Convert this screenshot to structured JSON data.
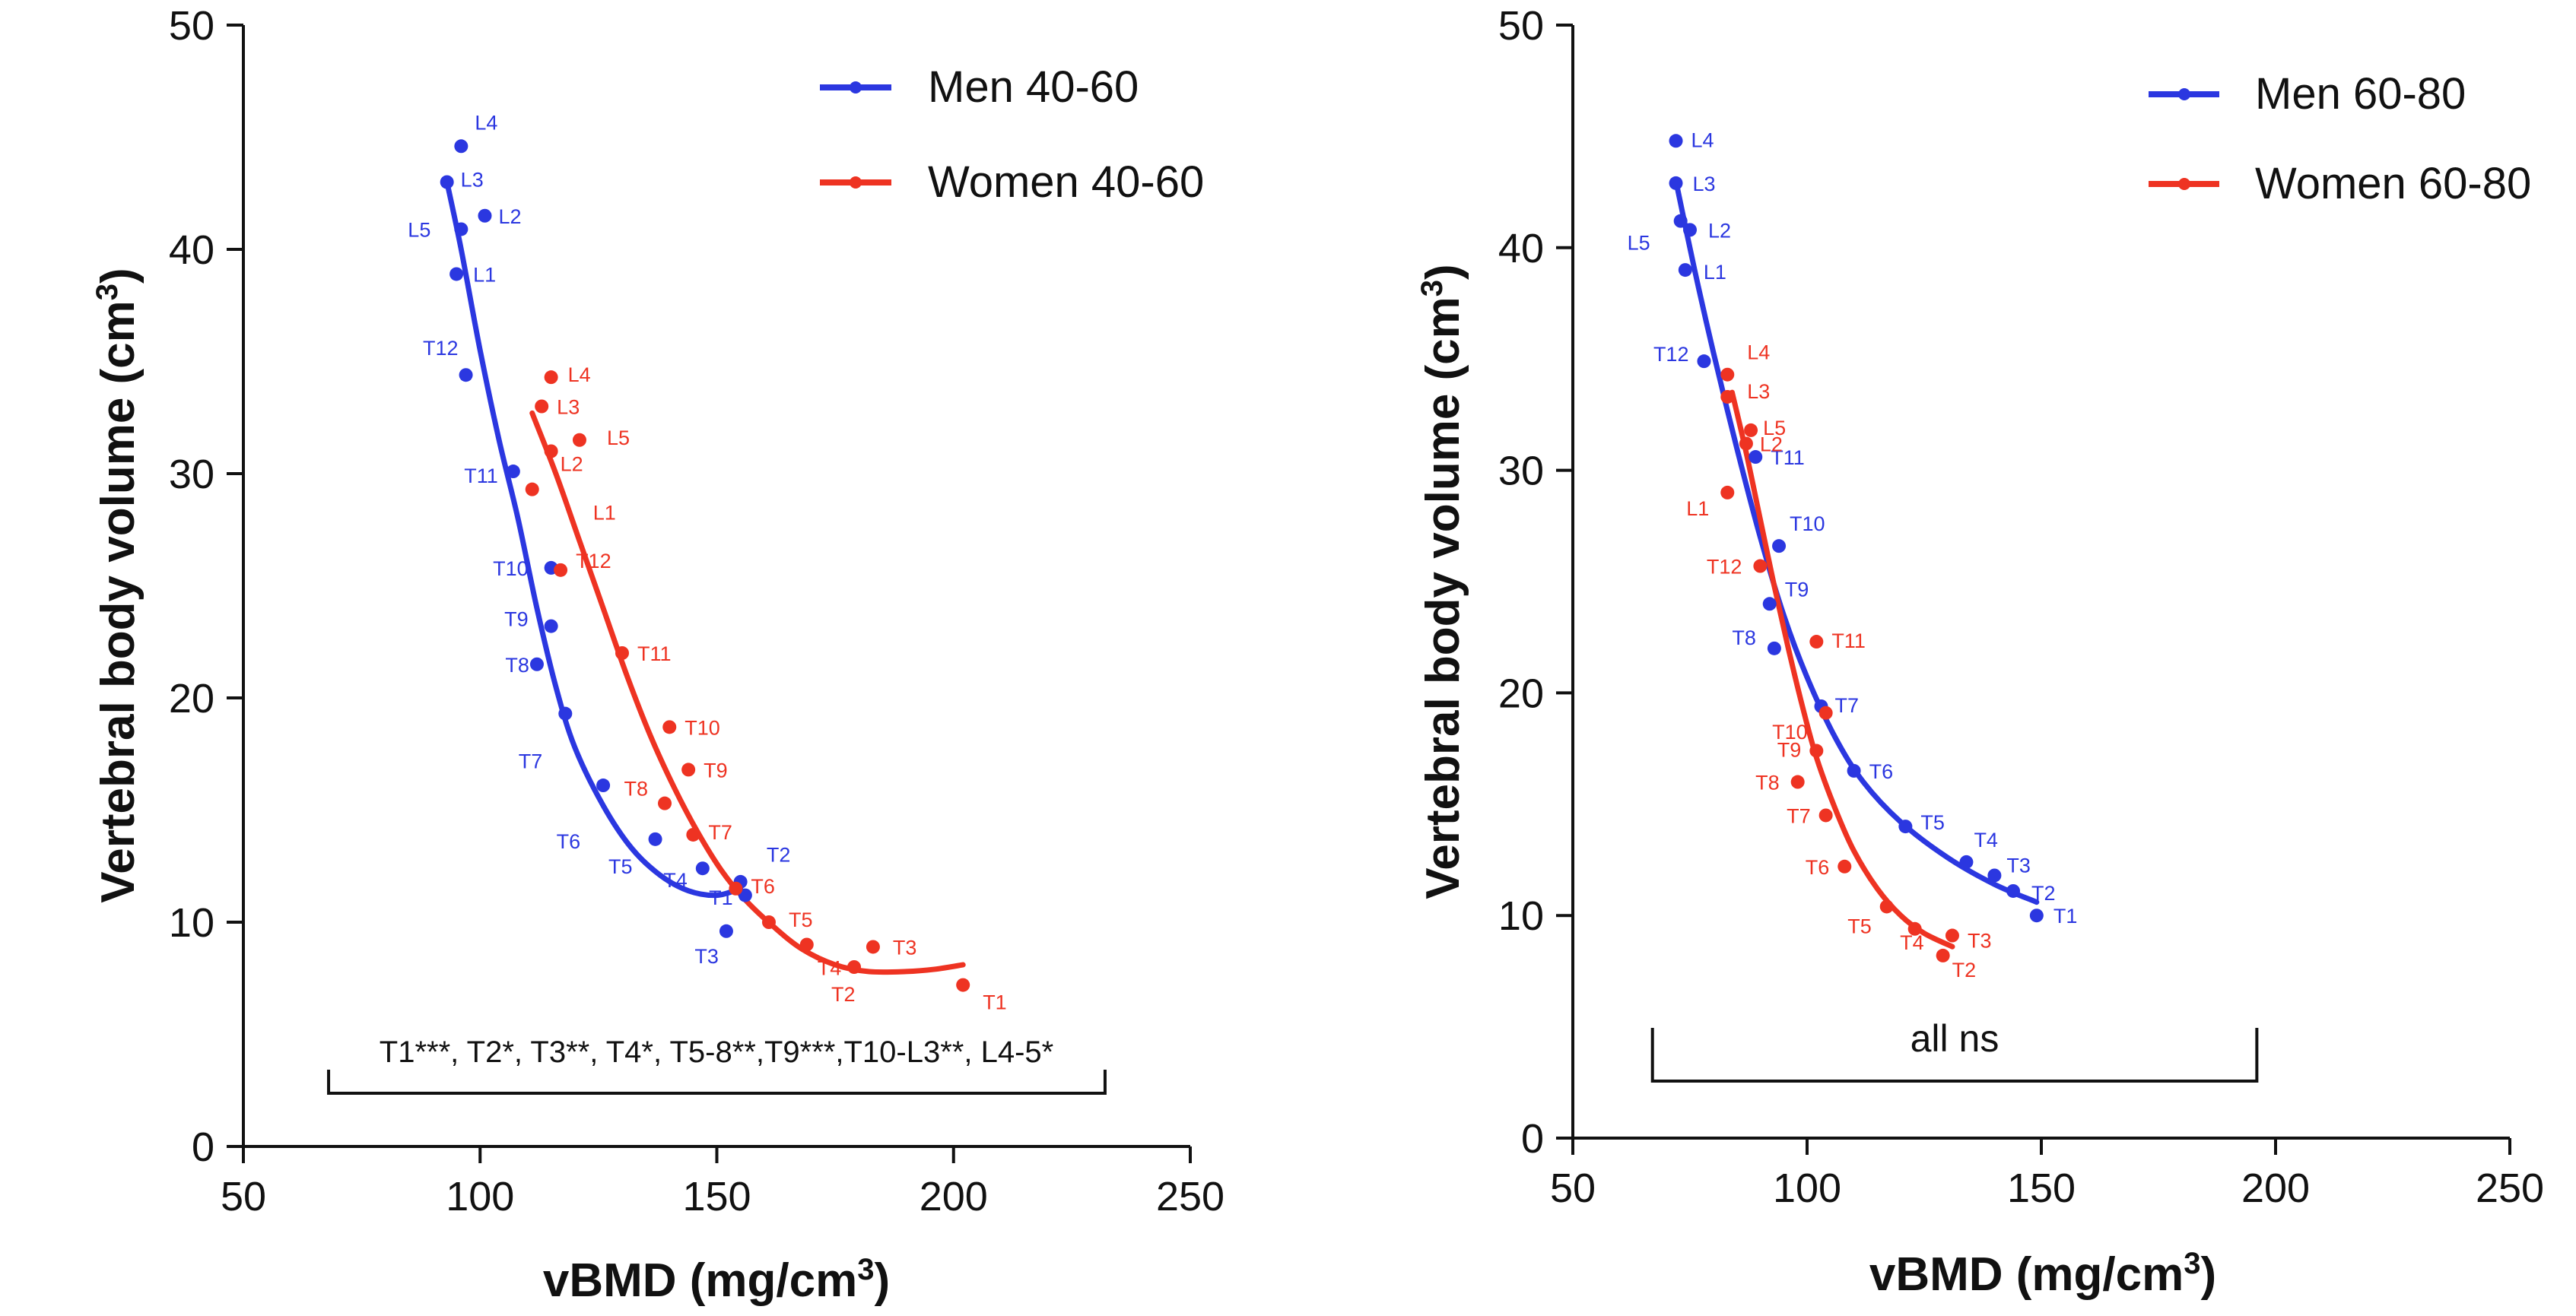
{
  "chart_data": [
    {
      "type": "scatter",
      "xlabel": "vBMD (mg/cm",
      "xlabel_sup": "3",
      "xlabel_end": ")",
      "ylabel": "Vertebral body volume (cm",
      "ylabel_sup": "3",
      "ylabel_end": ")",
      "xlim": [
        50,
        250
      ],
      "ylim": [
        0,
        50
      ],
      "xticks": [
        "50",
        "100",
        "150",
        "200",
        "250"
      ],
      "yticks": [
        "0",
        "10",
        "20",
        "30",
        "40",
        "50"
      ],
      "legend_position": "top-right",
      "bracket_text": "T1***, T2*, T3**, T4*, T5-8**,T9***,T10-L3**, L4-5*",
      "bracket_x": [
        68,
        232
      ],
      "series": [
        {
          "name": "Men 40-60",
          "color": "#2b37e0",
          "points": [
            {
              "label": "L4",
              "x": 96,
              "y": 44.6
            },
            {
              "label": "L3",
              "x": 93,
              "y": 43.0
            },
            {
              "label": "L2",
              "x": 101,
              "y": 41.5
            },
            {
              "label": "L5",
              "x": 96,
              "y": 40.9
            },
            {
              "label": "L1",
              "x": 95,
              "y": 38.9
            },
            {
              "label": "T12",
              "x": 97,
              "y": 34.4
            },
            {
              "label": "T11",
              "x": 107,
              "y": 30.1
            },
            {
              "label": "T10",
              "x": 115,
              "y": 25.8
            },
            {
              "label": "T9",
              "x": 115,
              "y": 23.2
            },
            {
              "label": "T8",
              "x": 112,
              "y": 21.5
            },
            {
              "label": "T7",
              "x": 118,
              "y": 19.3
            },
            {
              "label": "T6",
              "x": 126,
              "y": 16.1
            },
            {
              "label": "T5",
              "x": 137,
              "y": 13.7
            },
            {
              "label": "T4",
              "x": 147,
              "y": 12.4
            },
            {
              "label": "T2",
              "x": 156,
              "y": 11.2
            },
            {
              "label": "T1",
              "x": 155,
              "y": 11.8
            },
            {
              "label": "T3",
              "x": 152,
              "y": 9.6
            }
          ],
          "curve": [
            [
              93,
              43.0
            ],
            [
              96,
              40.0
            ],
            [
              100,
              35.5
            ],
            [
              104,
              31.5
            ],
            [
              108,
              28.0
            ],
            [
              112,
              24.0
            ],
            [
              116,
              20.5
            ],
            [
              120,
              17.8
            ],
            [
              126,
              15.2
            ],
            [
              132,
              13.3
            ],
            [
              138,
              12.1
            ],
            [
              144,
              11.4
            ],
            [
              150,
              11.2
            ],
            [
              155,
              11.5
            ]
          ]
        },
        {
          "name": "Women 40-60",
          "color": "#ee3322",
          "points": [
            {
              "label": "L4",
              "x": 115,
              "y": 34.3
            },
            {
              "label": "L3",
              "x": 113,
              "y": 33.0
            },
            {
              "label": "L5",
              "x": 121,
              "y": 31.5
            },
            {
              "label": "L2",
              "x": 115,
              "y": 31.0
            },
            {
              "label": "L1",
              "x": 111,
              "y": 29.3
            },
            {
              "label": "T12",
              "x": 117,
              "y": 25.7
            },
            {
              "label": "T11",
              "x": 130,
              "y": 22.0
            },
            {
              "label": "T10",
              "x": 140,
              "y": 18.7
            },
            {
              "label": "T9",
              "x": 144,
              "y": 16.8
            },
            {
              "label": "T8",
              "x": 139,
              "y": 15.3
            },
            {
              "label": "T7",
              "x": 145,
              "y": 13.9
            },
            {
              "label": "T6",
              "x": 154,
              "y": 11.5
            },
            {
              "label": "T5",
              "x": 161,
              "y": 10.0
            },
            {
              "label": "T4",
              "x": 169,
              "y": 9.0
            },
            {
              "label": "T3",
              "x": 183,
              "y": 8.9
            },
            {
              "label": "T2",
              "x": 179,
              "y": 8.0
            },
            {
              "label": "T1",
              "x": 202,
              "y": 7.2
            }
          ],
          "curve": [
            [
              111,
              32.7
            ],
            [
              116,
              30.0
            ],
            [
              121,
              27.0
            ],
            [
              126,
              24.0
            ],
            [
              131,
              21.0
            ],
            [
              136,
              18.3
            ],
            [
              141,
              16.0
            ],
            [
              146,
              14.0
            ],
            [
              151,
              12.3
            ],
            [
              156,
              11.0
            ],
            [
              162,
              9.8
            ],
            [
              168,
              8.8
            ],
            [
              175,
              8.1
            ],
            [
              182,
              7.8
            ],
            [
              190,
              7.8
            ],
            [
              196,
              7.9
            ],
            [
              202,
              8.1
            ]
          ]
        }
      ]
    },
    {
      "type": "scatter",
      "xlabel": "vBMD (mg/cm",
      "xlabel_sup": "3",
      "xlabel_end": ")",
      "ylabel": "Vertebral body volume (cm",
      "ylabel_sup": "3",
      "ylabel_end": ")",
      "xlim": [
        50,
        250
      ],
      "ylim": [
        0,
        50
      ],
      "xticks": [
        "50",
        "100",
        "150",
        "200",
        "250"
      ],
      "yticks": [
        "0",
        "10",
        "20",
        "30",
        "40",
        "50"
      ],
      "legend_position": "top-right",
      "bracket_text": "all ns",
      "bracket_x": [
        67,
        196
      ],
      "series": [
        {
          "name": "Men 60-80",
          "color": "#2b37e0",
          "points": [
            {
              "label": "L4",
              "x": 72,
              "y": 44.8
            },
            {
              "label": "L3",
              "x": 72,
              "y": 42.9
            },
            {
              "label": "L2",
              "x": 75,
              "y": 40.8
            },
            {
              "label": "L5",
              "x": 73,
              "y": 41.2
            },
            {
              "label": "L1",
              "x": 74,
              "y": 39.0
            },
            {
              "label": "T12",
              "x": 78,
              "y": 34.9
            },
            {
              "label": "T11",
              "x": 89,
              "y": 30.6
            },
            {
              "label": "T10",
              "x": 94,
              "y": 26.6
            },
            {
              "label": "T9",
              "x": 92,
              "y": 24.0
            },
            {
              "label": "T8",
              "x": 93,
              "y": 22.0
            },
            {
              "label": "T7",
              "x": 103,
              "y": 19.4
            },
            {
              "label": "T6",
              "x": 110,
              "y": 16.5
            },
            {
              "label": "T5",
              "x": 121,
              "y": 14.0
            },
            {
              "label": "T4",
              "x": 134,
              "y": 12.4
            },
            {
              "label": "T3",
              "x": 140,
              "y": 11.8
            },
            {
              "label": "T2",
              "x": 144,
              "y": 11.1
            },
            {
              "label": "T1",
              "x": 149,
              "y": 10.0
            }
          ],
          "curve": [
            [
              72,
              43.0
            ],
            [
              76,
              39.0
            ],
            [
              80,
              35.3
            ],
            [
              85,
              31.0
            ],
            [
              90,
              27.0
            ],
            [
              95,
              23.5
            ],
            [
              100,
              20.7
            ],
            [
              106,
              18.0
            ],
            [
              112,
              16.0
            ],
            [
              120,
              14.2
            ],
            [
              130,
              12.6
            ],
            [
              140,
              11.4
            ],
            [
              149,
              10.6
            ]
          ]
        },
        {
          "name": "Women 60-80",
          "color": "#ee3322",
          "points": [
            {
              "label": "L4",
              "x": 83,
              "y": 34.3
            },
            {
              "label": "L3",
              "x": 83,
              "y": 33.3
            },
            {
              "label": "L5",
              "x": 88,
              "y": 31.8
            },
            {
              "label": "L2",
              "x": 87,
              "y": 31.2
            },
            {
              "label": "L1",
              "x": 83,
              "y": 29.0
            },
            {
              "label": "T12",
              "x": 90,
              "y": 25.7
            },
            {
              "label": "T11",
              "x": 102,
              "y": 22.3
            },
            {
              "label": "T10",
              "x": 104,
              "y": 19.1
            },
            {
              "label": "T9",
              "x": 102,
              "y": 17.4
            },
            {
              "label": "T8",
              "x": 98,
              "y": 16.0
            },
            {
              "label": "T7",
              "x": 104,
              "y": 14.5
            },
            {
              "label": "T6",
              "x": 108,
              "y": 12.2
            },
            {
              "label": "T5",
              "x": 117,
              "y": 10.4
            },
            {
              "label": "T4",
              "x": 123,
              "y": 9.4
            },
            {
              "label": "T3",
              "x": 131,
              "y": 9.1
            },
            {
              "label": "T2",
              "x": 129,
              "y": 8.2
            }
          ],
          "curve": [
            [
              84,
              33.5
            ],
            [
              87,
              30.8
            ],
            [
              90,
              27.8
            ],
            [
              93,
              24.8
            ],
            [
              96,
              22.0
            ],
            [
              99,
              19.4
            ],
            [
              102,
              17.1
            ],
            [
              106,
              14.8
            ],
            [
              110,
              12.9
            ],
            [
              115,
              11.2
            ],
            [
              120,
              10.0
            ],
            [
              125,
              9.2
            ],
            [
              131,
              8.6
            ]
          ]
        }
      ]
    }
  ]
}
